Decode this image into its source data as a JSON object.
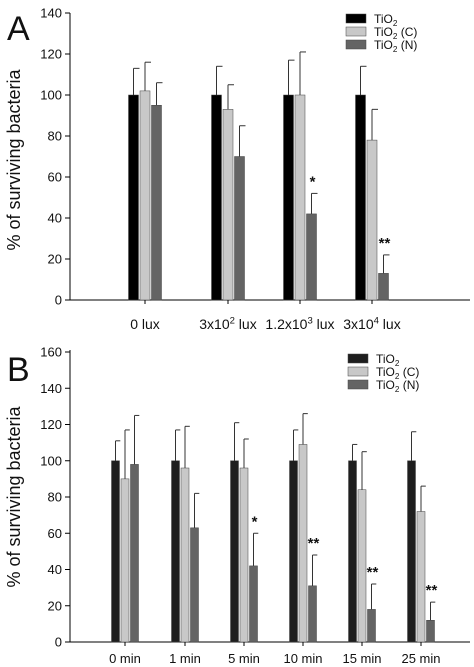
{
  "chart_data": [
    {
      "panel_label": "A",
      "type": "bar",
      "ylabel": "% of surviving bacteria",
      "ylim": [
        0,
        140
      ],
      "yticks": [
        0,
        20,
        40,
        60,
        80,
        100,
        120,
        140
      ],
      "categories": [
        {
          "base": "0 lux"
        },
        {
          "base": "3x10",
          "sup": "2",
          "unit": " lux"
        },
        {
          "base": "1.2x10",
          "sup": "3",
          "unit": " lux"
        },
        {
          "base": "3x10",
          "sup": "4",
          "unit": " lux"
        }
      ],
      "legend_position": "top-right",
      "series": [
        {
          "name": {
            "base": "TiO",
            "sub": "2",
            "suffix": ""
          },
          "color": "#000000",
          "values": [
            100,
            100,
            100,
            100
          ],
          "errors": [
            13,
            14,
            17,
            14
          ]
        },
        {
          "name": {
            "base": "TiO",
            "sub": "2",
            "suffix": " (C)"
          },
          "color": "#c8c8c8",
          "values": [
            102,
            93,
            100,
            78
          ],
          "errors": [
            14,
            12,
            21,
            15
          ]
        },
        {
          "name": {
            "base": "TiO",
            "sub": "2",
            "suffix": " (N)"
          },
          "color": "#646464",
          "values": [
            95,
            70,
            42,
            13
          ],
          "errors": [
            11,
            15,
            10,
            9
          ]
        }
      ],
      "annotations": [
        {
          "category": 2,
          "series": 2,
          "text": "*"
        },
        {
          "category": 3,
          "series": 2,
          "text": "**"
        }
      ]
    },
    {
      "panel_label": "B",
      "type": "bar",
      "ylabel": "% of surviving bacteria",
      "ylim": [
        0,
        160
      ],
      "yticks": [
        0,
        20,
        40,
        60,
        80,
        100,
        120,
        140,
        160
      ],
      "categories": [
        {
          "base": "0 min"
        },
        {
          "base": "1 min"
        },
        {
          "base": "5 min"
        },
        {
          "base": "10 min"
        },
        {
          "base": "15 min"
        },
        {
          "base": "25 min"
        }
      ],
      "legend_position": "top-right",
      "series": [
        {
          "name": {
            "base": "TiO",
            "sub": "2",
            "suffix": ""
          },
          "color": "#1e1e1e",
          "values": [
            100,
            100,
            100,
            100,
            100,
            100
          ],
          "errors": [
            11,
            17,
            21,
            17,
            9,
            16
          ]
        },
        {
          "name": {
            "base": "TiO",
            "sub": "2",
            "suffix": " (C)"
          },
          "color": "#c8c8c8",
          "values": [
            90,
            96,
            96,
            109,
            84,
            72
          ],
          "errors": [
            27,
            23,
            16,
            17,
            21,
            14
          ]
        },
        {
          "name": {
            "base": "TiO",
            "sub": "2",
            "suffix": " (N)"
          },
          "color": "#646464",
          "values": [
            98,
            63,
            42,
            31,
            18,
            12
          ],
          "errors": [
            27,
            19,
            18,
            17,
            14,
            10
          ]
        }
      ],
      "annotations": [
        {
          "category": 2,
          "series": 2,
          "text": "*"
        },
        {
          "category": 3,
          "series": 2,
          "text": "**"
        },
        {
          "category": 4,
          "series": 2,
          "text": "**"
        },
        {
          "category": 5,
          "series": 2,
          "text": "**"
        }
      ]
    }
  ]
}
